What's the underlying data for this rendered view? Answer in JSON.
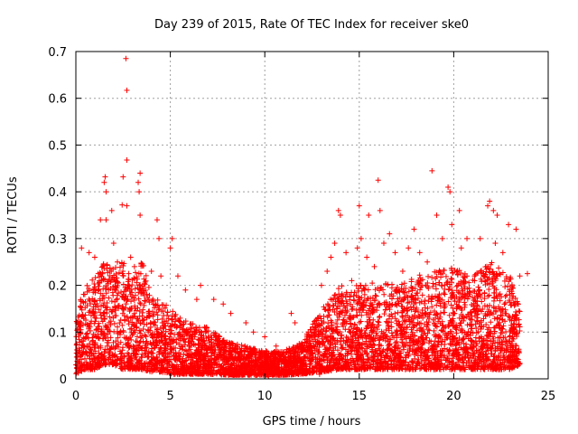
{
  "chart_data": {
    "type": "scatter",
    "title": "Day 239 of 2015, Rate Of TEC Index for receiver ske0",
    "xlabel": "GPS time / hours",
    "ylabel": "ROTI / TECUs",
    "xlim": [
      0,
      25
    ],
    "ylim": [
      0,
      0.7
    ],
    "x_ticks": [
      0,
      5,
      10,
      15,
      20,
      25
    ],
    "x_tick_labels": [
      "0",
      "5",
      "10",
      "15",
      "20",
      "25"
    ],
    "y_ticks": [
      0,
      0.1,
      0.2,
      0.3,
      0.4,
      0.5,
      0.6,
      0.7
    ],
    "y_tick_labels": [
      "0",
      "0.1",
      "0.2",
      "0.3",
      "0.4",
      "0.5",
      "0.6",
      "0.7"
    ],
    "grid": true,
    "marker": "plus",
    "marker_color": "#ff0000",
    "series": [
      {
        "name": "ROTI",
        "points": [
          [
            2.65,
            0.685
          ],
          [
            2.7,
            0.617
          ],
          [
            2.7,
            0.468
          ],
          [
            3.4,
            0.44
          ],
          [
            3.3,
            0.42
          ],
          [
            3.35,
            0.4
          ],
          [
            1.55,
            0.432
          ],
          [
            1.5,
            0.42
          ],
          [
            1.6,
            0.4
          ],
          [
            2.5,
            0.432
          ],
          [
            2.45,
            0.372
          ],
          [
            2.7,
            0.37
          ],
          [
            1.9,
            0.36
          ],
          [
            1.3,
            0.34
          ],
          [
            1.6,
            0.34
          ],
          [
            3.4,
            0.35
          ],
          [
            4.3,
            0.34
          ],
          [
            5.1,
            0.3
          ],
          [
            5.0,
            0.28
          ],
          [
            4.4,
            0.3
          ],
          [
            0.3,
            0.28
          ],
          [
            0.7,
            0.27
          ],
          [
            1.0,
            0.26
          ],
          [
            2.0,
            0.29
          ],
          [
            2.2,
            0.25
          ],
          [
            2.9,
            0.26
          ],
          [
            3.1,
            0.24
          ],
          [
            4.0,
            0.23
          ],
          [
            4.5,
            0.22
          ],
          [
            5.4,
            0.22
          ],
          [
            5.8,
            0.19
          ],
          [
            6.4,
            0.17
          ],
          [
            6.6,
            0.2
          ],
          [
            7.3,
            0.17
          ],
          [
            7.8,
            0.16
          ],
          [
            8.2,
            0.14
          ],
          [
            9.0,
            0.12
          ],
          [
            9.4,
            0.1
          ],
          [
            10.0,
            0.09
          ],
          [
            10.6,
            0.07
          ],
          [
            11.4,
            0.14
          ],
          [
            11.6,
            0.12
          ],
          [
            12.3,
            0.1
          ],
          [
            12.8,
            0.13
          ],
          [
            13.0,
            0.2
          ],
          [
            13.3,
            0.23
          ],
          [
            13.5,
            0.26
          ],
          [
            13.7,
            0.29
          ],
          [
            13.9,
            0.36
          ],
          [
            14.0,
            0.35
          ],
          [
            14.3,
            0.27
          ],
          [
            14.6,
            0.21
          ],
          [
            14.9,
            0.28
          ],
          [
            15.0,
            0.37
          ],
          [
            15.1,
            0.3
          ],
          [
            15.5,
            0.35
          ],
          [
            15.4,
            0.26
          ],
          [
            15.8,
            0.24
          ],
          [
            16.0,
            0.425
          ],
          [
            16.1,
            0.36
          ],
          [
            16.3,
            0.29
          ],
          [
            16.6,
            0.31
          ],
          [
            16.9,
            0.27
          ],
          [
            17.3,
            0.23
          ],
          [
            17.6,
            0.28
          ],
          [
            17.9,
            0.32
          ],
          [
            18.2,
            0.27
          ],
          [
            18.6,
            0.25
          ],
          [
            18.85,
            0.445
          ],
          [
            19.1,
            0.35
          ],
          [
            19.4,
            0.3
          ],
          [
            19.7,
            0.41
          ],
          [
            19.8,
            0.4
          ],
          [
            19.9,
            0.33
          ],
          [
            20.3,
            0.36
          ],
          [
            20.4,
            0.28
          ],
          [
            20.7,
            0.3
          ],
          [
            21.1,
            0.22
          ],
          [
            21.4,
            0.3
          ],
          [
            21.8,
            0.37
          ],
          [
            21.9,
            0.38
          ],
          [
            22.1,
            0.36
          ],
          [
            22.3,
            0.35
          ],
          [
            22.2,
            0.29
          ],
          [
            22.6,
            0.27
          ],
          [
            22.9,
            0.33
          ],
          [
            23.3,
            0.32
          ],
          [
            23.5,
            0.22
          ],
          [
            23.9,
            0.225
          ],
          [
            23.4,
            0.06
          ],
          [
            23.2,
            0.05
          ],
          [
            12.9,
            0.01
          ],
          [
            13.1,
            0.02
          ],
          [
            10.2,
            0.005
          ],
          [
            8.5,
            0.01
          ],
          [
            6.2,
            0.01
          ]
        ]
      }
    ]
  }
}
